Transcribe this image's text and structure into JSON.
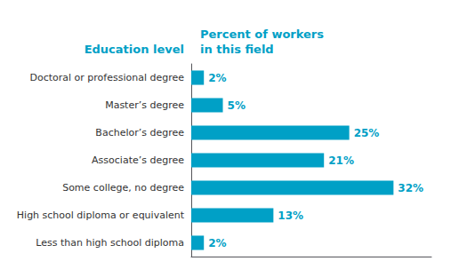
{
  "chart_data": {
    "type": "bar",
    "orientation": "horizontal",
    "categories": [
      "Doctoral or professional degree",
      "Master’s degree",
      "Bachelor’s degree",
      "Associate’s degree",
      "Some college, no degree",
      "High school diploma or equivalent",
      "Less than high school diploma"
    ],
    "values": [
      2,
      5,
      25,
      21,
      32,
      13,
      2
    ],
    "value_labels": [
      "2%",
      "5%",
      "25%",
      "21%",
      "32%",
      "13%",
      "2%"
    ],
    "data_labels": true,
    "color": "#00a0c6",
    "xlim": [
      0,
      38
    ],
    "grid": false,
    "tick_labels": "y",
    "annotations": [
      {
        "text": "Education level",
        "position": "left"
      },
      {
        "text": "Percent of workers\nin this field",
        "position": "right"
      }
    ]
  }
}
